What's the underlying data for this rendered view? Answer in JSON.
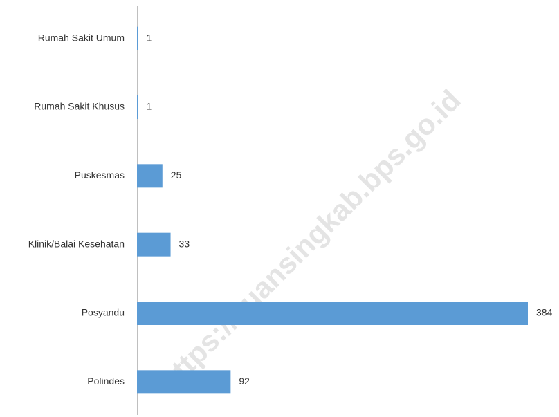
{
  "chart_data": {
    "type": "hbar",
    "categories": [
      "Rumah Sakit Umum",
      "Rumah Sakit Khusus",
      "Puskesmas",
      "Klinik/Balai Kesehatan",
      "Posyandu",
      "Polindes"
    ],
    "values": [
      1,
      1,
      25,
      33,
      384,
      92
    ],
    "color": "#5b9bd5",
    "watermark": "https://kuansingkab.bps.go.id"
  }
}
